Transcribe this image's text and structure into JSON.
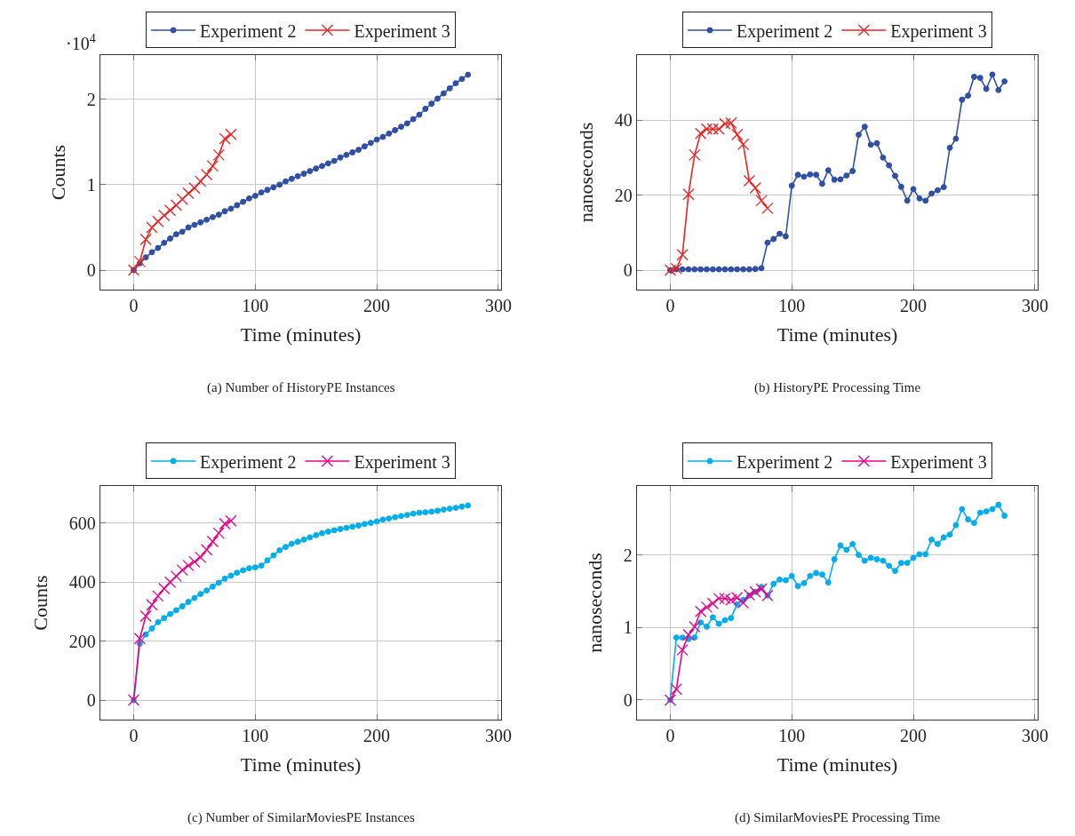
{
  "chart_data": [
    {
      "type": "line",
      "title": "(a) Number of HistoryPE Instances",
      "xlabel": "Time (minutes)",
      "ylabel": "Counts",
      "annotations": [
        "·10$^{4}$"
      ],
      "xlim": [
        -27.5,
        302.5
      ],
      "xticks": [
        0,
        100,
        200,
        300
      ],
      "ylim": [
        -0.229,
        2.52
      ],
      "yticks": [
        0,
        1,
        2
      ],
      "grid": true,
      "legend": "top",
      "line_style": "solid",
      "series": [
        {
          "name": "Experiment 2",
          "color": "#3050a8",
          "marker": "circle",
          "x": [
            0,
            5,
            10,
            15,
            20,
            25,
            30,
            35,
            40,
            45,
            50,
            55,
            60,
            65,
            70,
            75,
            80,
            85,
            90,
            95,
            100,
            105,
            110,
            115,
            120,
            125,
            130,
            135,
            140,
            145,
            150,
            155,
            160,
            165,
            170,
            175,
            180,
            185,
            190,
            195,
            200,
            205,
            210,
            215,
            220,
            225,
            230,
            235,
            240,
            245,
            250,
            255,
            260,
            265,
            270,
            275
          ],
          "values": [
            0,
            0.08,
            0.15,
            0.21,
            0.26,
            0.32,
            0.37,
            0.42,
            0.45,
            0.5,
            0.53,
            0.56,
            0.59,
            0.62,
            0.65,
            0.69,
            0.72,
            0.76,
            0.8,
            0.84,
            0.87,
            0.91,
            0.94,
            0.97,
            1.0,
            1.04,
            1.07,
            1.1,
            1.13,
            1.16,
            1.19,
            1.22,
            1.25,
            1.28,
            1.32,
            1.35,
            1.38,
            1.41,
            1.45,
            1.49,
            1.53,
            1.56,
            1.6,
            1.64,
            1.68,
            1.72,
            1.77,
            1.82,
            1.89,
            1.95,
            2.01,
            2.07,
            2.13,
            2.19,
            2.24,
            2.29
          ]
        },
        {
          "name": "Experiment 3",
          "color": "#ee2222",
          "marker": "cross",
          "x": [
            0,
            5,
            10,
            15,
            20,
            25,
            30,
            35,
            40,
            45,
            50,
            55,
            60,
            65,
            70,
            75,
            80
          ],
          "values": [
            0,
            0.1,
            0.36,
            0.5,
            0.57,
            0.64,
            0.7,
            0.76,
            0.83,
            0.9,
            0.96,
            1.04,
            1.12,
            1.22,
            1.35,
            1.54,
            1.59
          ]
        }
      ]
    },
    {
      "type": "line",
      "title": "(b) HistoryPE Processing Time",
      "xlabel": "Time (minutes)",
      "ylabel": "nanoseconds",
      "xlim": [
        -27.5,
        302.5
      ],
      "xticks": [
        0,
        100,
        200,
        300
      ],
      "ylim": [
        -5.2,
        57.3
      ],
      "yticks": [
        0,
        20,
        40
      ],
      "grid": true,
      "legend": "top",
      "line_style": "solid",
      "series": [
        {
          "name": "Experiment 2",
          "color": "#3050a8",
          "marker": "circle",
          "x": [
            0,
            5,
            10,
            15,
            20,
            25,
            30,
            35,
            40,
            45,
            50,
            55,
            60,
            65,
            70,
            75,
            80,
            85,
            90,
            95,
            100,
            105,
            110,
            115,
            120,
            125,
            130,
            135,
            140,
            145,
            150,
            155,
            160,
            165,
            170,
            175,
            180,
            185,
            190,
            195,
            200,
            205,
            210,
            215,
            220,
            225,
            230,
            235,
            240,
            245,
            250,
            255,
            260,
            265,
            270,
            275
          ],
          "values": [
            0,
            0.2,
            0.2,
            0.2,
            0.2,
            0.2,
            0.2,
            0.2,
            0.2,
            0.2,
            0.2,
            0.2,
            0.2,
            0.2,
            0.3,
            0.5,
            7.3,
            8.3,
            9.7,
            9.0,
            22.5,
            25.4,
            24.9,
            25.5,
            25.4,
            23.0,
            26.6,
            24.1,
            24.2,
            25.2,
            26.4,
            36.1,
            38.2,
            33.4,
            33.8,
            30.0,
            27.9,
            25.1,
            22.2,
            18.5,
            21.6,
            19.1,
            18.5,
            20.4,
            21.3,
            22.1,
            32.6,
            35.0,
            45.4,
            46.5,
            51.5,
            51.2,
            48.3,
            52.1,
            48.0,
            50.3
          ]
        },
        {
          "name": "Experiment 3",
          "color": "#ee2222",
          "marker": "cross",
          "x": [
            0,
            5,
            10,
            15,
            20,
            25,
            30,
            35,
            40,
            45,
            50,
            55,
            60,
            65,
            70,
            75,
            80
          ],
          "values": [
            0,
            0.4,
            4.1,
            20.2,
            30.7,
            36.4,
            37.6,
            37.6,
            37.6,
            39.0,
            39.2,
            36.1,
            33.5,
            23.8,
            21.9,
            18.5,
            16.5
          ]
        }
      ]
    },
    {
      "type": "line",
      "title": "(c) Number of SimilarMoviesPE Instances",
      "xlabel": "Time (minutes)",
      "ylabel": "Counts",
      "xlim": [
        -27.5,
        302.5
      ],
      "xticks": [
        0,
        100,
        200,
        300
      ],
      "ylim": [
        -66,
        726
      ],
      "yticks": [
        0,
        200,
        400,
        600
      ],
      "grid": true,
      "legend": "top",
      "line_style": "solid",
      "series": [
        {
          "name": "Experiment 2",
          "color": "#00aeef",
          "marker": "circle",
          "x": [
            0,
            5,
            10,
            15,
            20,
            25,
            30,
            35,
            40,
            45,
            50,
            55,
            60,
            65,
            70,
            75,
            80,
            85,
            90,
            95,
            100,
            105,
            110,
            115,
            120,
            125,
            130,
            135,
            140,
            145,
            150,
            155,
            160,
            165,
            170,
            175,
            180,
            185,
            190,
            195,
            200,
            205,
            210,
            215,
            220,
            225,
            230,
            235,
            240,
            245,
            250,
            255,
            260,
            265,
            270,
            275
          ],
          "values": [
            0,
            191,
            223,
            243,
            264,
            278,
            292,
            305,
            318,
            333,
            346,
            360,
            372,
            385,
            398,
            412,
            422,
            432,
            440,
            447,
            450,
            456,
            474,
            491,
            508,
            519,
            530,
            537,
            544,
            552,
            559,
            566,
            571,
            576,
            580,
            584,
            588,
            592,
            597,
            601,
            606,
            612,
            616,
            620,
            624,
            628,
            632,
            635,
            637,
            639,
            642,
            646,
            649,
            652,
            656,
            660
          ]
        },
        {
          "name": "Experiment 3",
          "color": "#ec008c",
          "marker": "cross",
          "x": [
            0,
            5,
            10,
            15,
            20,
            25,
            30,
            35,
            40,
            45,
            50,
            55,
            60,
            65,
            70,
            75,
            80
          ],
          "values": [
            0,
            209,
            285,
            323,
            353,
            378,
            400,
            420,
            441,
            456,
            469,
            484,
            510,
            538,
            566,
            598,
            608
          ]
        }
      ]
    },
    {
      "type": "line",
      "title": "(d) SimilarMoviesPE Processing Time",
      "xlabel": "Time (minutes)",
      "ylabel": "nanoseconds",
      "xlim": [
        -27.5,
        302.5
      ],
      "xticks": [
        0,
        100,
        200,
        300
      ],
      "ylim": [
        -0.27,
        2.95
      ],
      "yticks": [
        0,
        1,
        2
      ],
      "grid": true,
      "legend": "top",
      "line_style": "solid",
      "series": [
        {
          "name": "Experiment 2",
          "color": "#00aeef",
          "marker": "circle",
          "x": [
            0,
            5,
            10,
            15,
            20,
            25,
            30,
            35,
            40,
            45,
            50,
            55,
            60,
            65,
            70,
            75,
            80,
            85,
            90,
            95,
            100,
            105,
            110,
            115,
            120,
            125,
            130,
            135,
            140,
            145,
            150,
            155,
            160,
            165,
            170,
            175,
            180,
            185,
            190,
            195,
            200,
            205,
            210,
            215,
            220,
            225,
            230,
            235,
            240,
            245,
            250,
            255,
            260,
            265,
            270,
            275
          ],
          "values": [
            0,
            0.86,
            0.86,
            0.84,
            0.86,
            1.07,
            1.01,
            1.14,
            1.05,
            1.1,
            1.13,
            1.32,
            1.38,
            1.44,
            1.49,
            1.56,
            1.44,
            1.6,
            1.66,
            1.65,
            1.71,
            1.57,
            1.61,
            1.71,
            1.75,
            1.73,
            1.62,
            1.94,
            2.13,
            2.07,
            2.15,
            2.0,
            1.92,
            1.96,
            1.94,
            1.92,
            1.85,
            1.78,
            1.89,
            1.89,
            1.96,
            2.01,
            2.01,
            2.21,
            2.15,
            2.24,
            2.28,
            2.41,
            2.63,
            2.49,
            2.44,
            2.58,
            2.6,
            2.63,
            2.69,
            2.54
          ]
        },
        {
          "name": "Experiment 3",
          "color": "#ec008c",
          "marker": "cross",
          "x": [
            0,
            5,
            10,
            15,
            20,
            25,
            30,
            35,
            40,
            45,
            50,
            55,
            60,
            65,
            70,
            75,
            80
          ],
          "values": [
            0,
            0.15,
            0.69,
            0.9,
            1.01,
            1.22,
            1.28,
            1.33,
            1.4,
            1.4,
            1.38,
            1.41,
            1.34,
            1.45,
            1.49,
            1.53,
            1.44
          ]
        }
      ]
    }
  ]
}
